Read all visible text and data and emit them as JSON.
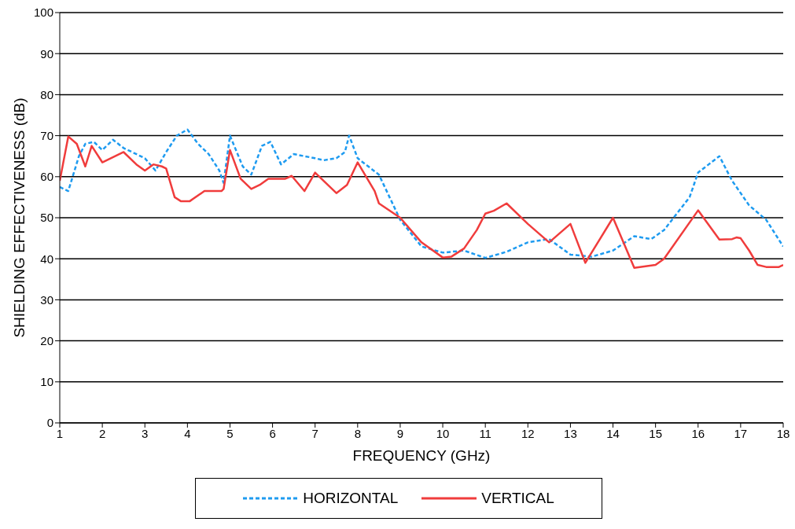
{
  "chart_data": {
    "type": "line",
    "xlabel": "FREQUENCY (GHz)",
    "ylabel": "SHIELDING EFFECTIVENESS (dB)",
    "xlim": [
      1,
      18
    ],
    "xticks": [
      1,
      2,
      3,
      4,
      5,
      6,
      7,
      8,
      9,
      10,
      11,
      12,
      13,
      14,
      15,
      16,
      17,
      18
    ],
    "ylim": [
      0,
      100
    ],
    "yticks": [
      0,
      10,
      20,
      30,
      40,
      50,
      60,
      70,
      80,
      90,
      100
    ],
    "grid": "y",
    "legend": "bottom",
    "marker": "none",
    "series": [
      {
        "name": "HORIZONTAL",
        "color": "#1e9bf0",
        "line_style": "dashed",
        "x": [
          1.0,
          1.2,
          1.45,
          1.6,
          1.8,
          2.0,
          2.25,
          2.5,
          3.0,
          3.25,
          3.5,
          3.75,
          4.0,
          4.25,
          4.5,
          4.75,
          4.85,
          5.0,
          5.3,
          5.5,
          5.75,
          5.95,
          6.2,
          6.5,
          7.0,
          7.2,
          7.5,
          7.7,
          7.8,
          8.0,
          8.5,
          9.0,
          9.5,
          10.0,
          10.5,
          11.0,
          11.5,
          12.0,
          12.5,
          13.0,
          13.5,
          14.0,
          14.5,
          14.9,
          15.2,
          15.8,
          16.0,
          16.5,
          16.8,
          17.2,
          17.6,
          18.0
        ],
        "values": [
          57.5,
          56.5,
          65,
          68,
          68.5,
          66.5,
          69,
          67,
          64.5,
          61.5,
          66,
          70,
          71.5,
          68,
          65.5,
          61.5,
          58.5,
          70,
          62.5,
          60.5,
          67.5,
          68.5,
          63,
          65.5,
          64.5,
          64,
          64.5,
          66,
          70,
          64.5,
          60.5,
          49.5,
          43,
          41.5,
          42,
          40.2,
          41.7,
          44,
          44.8,
          41,
          40.5,
          42,
          45.5,
          44.8,
          47,
          55,
          61,
          65,
          59,
          53,
          49.5,
          43
        ]
      },
      {
        "name": "VERTICAL",
        "color": "#f03c3c",
        "line_style": "solid",
        "x": [
          1.0,
          1.2,
          1.4,
          1.6,
          1.75,
          2.0,
          2.5,
          2.8,
          3.0,
          3.2,
          3.4,
          3.5,
          3.7,
          3.85,
          4.05,
          4.4,
          4.8,
          4.85,
          5.0,
          5.25,
          5.5,
          5.7,
          5.9,
          6.3,
          6.45,
          6.75,
          7.0,
          7.5,
          7.75,
          8.0,
          8.4,
          8.5,
          9.0,
          9.5,
          10.0,
          10.2,
          10.5,
          10.8,
          11.0,
          11.2,
          11.5,
          12.0,
          12.5,
          13.0,
          13.35,
          14.0,
          14.5,
          15.0,
          15.2,
          16.0,
          16.5,
          16.8,
          16.9,
          17.0,
          17.2,
          17.4,
          17.6,
          17.9,
          18.0
        ],
        "values": [
          59,
          69.8,
          68,
          62.5,
          67.5,
          63.5,
          66,
          63,
          61.5,
          63,
          62.5,
          62,
          55,
          54,
          54,
          56.5,
          56.5,
          57,
          66.5,
          59.5,
          57,
          58,
          59.5,
          59.5,
          60.2,
          56.5,
          61,
          56,
          58,
          63.5,
          56.5,
          53.5,
          50,
          44,
          40.3,
          40.5,
          42.5,
          47,
          51,
          51.7,
          53.5,
          48.5,
          44,
          48.5,
          39,
          50,
          37.8,
          38.5,
          40,
          51.8,
          44.7,
          44.8,
          45.2,
          45,
          42,
          38.5,
          38,
          38,
          38.5
        ]
      }
    ]
  }
}
